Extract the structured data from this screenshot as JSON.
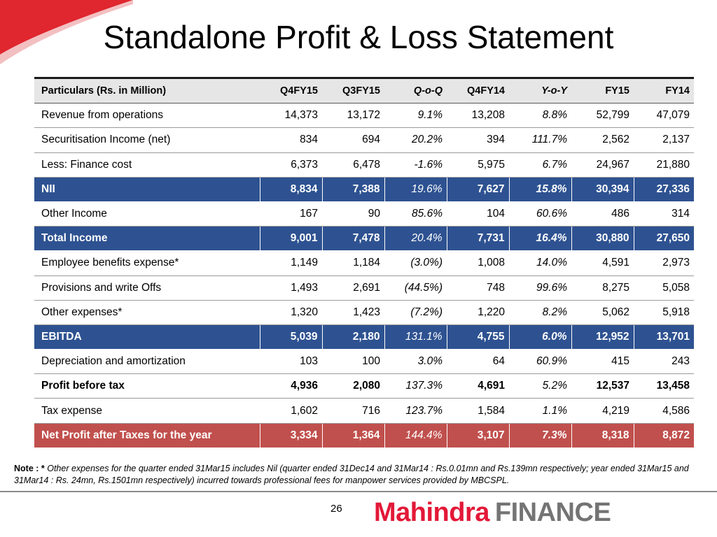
{
  "title": "Standalone Profit & Loss Statement",
  "table": {
    "headers": [
      "Particulars (Rs. in Million)",
      "Q4FY15",
      "Q3FY15",
      "Q-o-Q",
      "Q4FY14",
      "Y-o-Y",
      "FY15",
      "FY14"
    ],
    "rows": [
      [
        "Revenue from operations",
        "14,373",
        "13,172",
        "9.1%",
        "13,208",
        "8.8%",
        "52,799",
        "47,079"
      ],
      [
        "Securitisation Income (net)",
        "834",
        "694",
        "20.2%",
        "394",
        "111.7%",
        "2,562",
        "2,137"
      ],
      [
        "Less: Finance cost",
        "6,373",
        "6,478",
        "-1.6%",
        "5,975",
        "6.7%",
        "24,967",
        "21,880"
      ],
      [
        "NII",
        "8,834",
        "7,388",
        "19.6%",
        "7,627",
        "15.8%",
        "30,394",
        "27,336"
      ],
      [
        "Other Income",
        "167",
        "90",
        "85.6%",
        "104",
        "60.6%",
        "486",
        "314"
      ],
      [
        "Total Income",
        "9,001",
        "7,478",
        "20.4%",
        "7,731",
        "16.4%",
        "30,880",
        "27,650"
      ],
      [
        "Employee benefits expense*",
        "1,149",
        "1,184",
        "(3.0%)",
        "1,008",
        "14.0%",
        "4,591",
        "2,973"
      ],
      [
        "Provisions and write Offs",
        "1,493",
        "2,691",
        "(44.5%)",
        "748",
        "99.6%",
        "8,275",
        "5,058"
      ],
      [
        "Other expenses*",
        "1,320",
        "1,423",
        "(7.2%)",
        "1,220",
        "8.2%",
        "5,062",
        "5,918"
      ],
      [
        "EBITDA",
        "5,039",
        "2,180",
        "131.1%",
        "4,755",
        "6.0%",
        "12,952",
        "13,701"
      ],
      [
        "Depreciation and amortization",
        "103",
        "100",
        "3.0%",
        "64",
        "60.9%",
        "415",
        "243"
      ],
      [
        "Profit before tax",
        "4,936",
        "2,080",
        "137.3%",
        "4,691",
        "5.2%",
        "12,537",
        "13,458"
      ],
      [
        "Tax expense",
        "1,602",
        "716",
        "123.7%",
        "1,584",
        "1.1%",
        "4,219",
        "4,586"
      ],
      [
        "Net Profit after Taxes for the year",
        "3,334",
        "1,364",
        "144.4%",
        "3,107",
        "7.3%",
        "8,318",
        "8,872"
      ]
    ]
  },
  "note": {
    "label": "Note : *",
    "text": " Other expenses for the quarter ended 31Mar15 includes Nil (quarter ended 31Dec14 and 31Mar14 : Rs.0.01mn and Rs.139mn respectively; year ended 31Mar15 and 31Mar14 : Rs. 24mn, Rs.1501mn respectively) incurred towards professional fees for manpower services provided by MBCSPL."
  },
  "footer": {
    "page_number": "26",
    "logo_brand": "Mahindra",
    "logo_suffix": "FINANCE"
  },
  "colors": {
    "highlight_blue": "#2e5291",
    "highlight_red": "#c0504d",
    "header_gray": "#e6e6e6",
    "brand_red": "#e31837",
    "finance_gray": "#747474"
  }
}
